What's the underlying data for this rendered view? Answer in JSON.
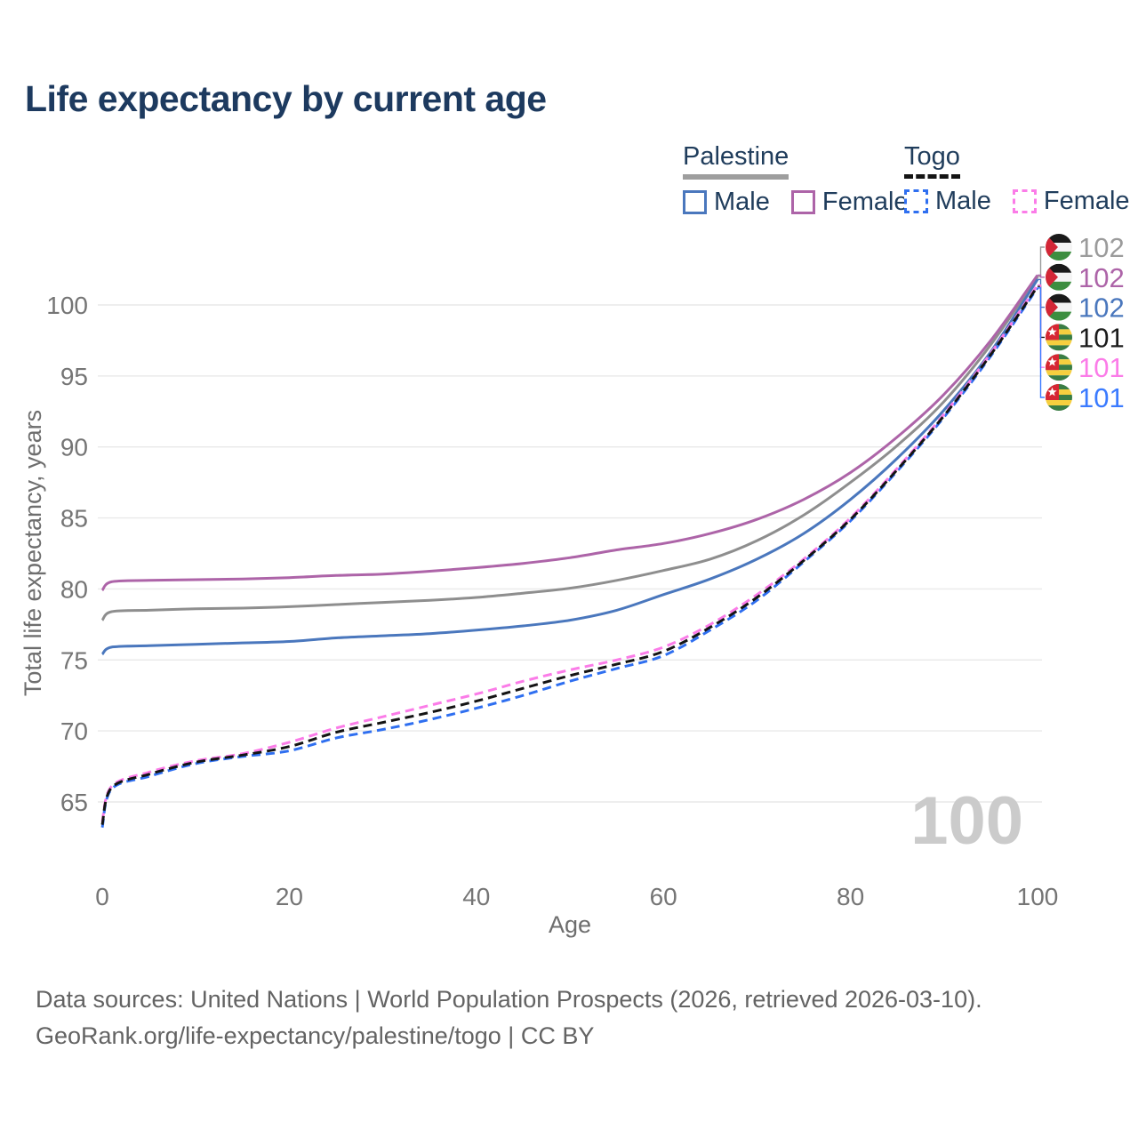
{
  "title": "Life expectancy by current age",
  "watermark": "100",
  "legend": {
    "groups": [
      {
        "label": "Palestine",
        "line_style": "solid",
        "underline_color": "#9e9e9e",
        "items": [
          {
            "label": "Male",
            "color": "#4a77bd"
          },
          {
            "label": "Female",
            "color": "#ad64a8"
          }
        ]
      },
      {
        "label": "Togo",
        "line_style": "dashed",
        "underline_color": "#141414",
        "items": [
          {
            "label": "Male",
            "color": "#2f6ff0"
          },
          {
            "label": "Female",
            "color": "#fb7ce8"
          }
        ]
      }
    ]
  },
  "axes": {
    "x_label": "Age",
    "y_label": "Total life expectancy, years",
    "x_ticks": [
      0,
      20,
      40,
      60,
      80,
      100
    ],
    "y_ticks": [
      65,
      70,
      75,
      80,
      85,
      90,
      95,
      100
    ]
  },
  "end_labels": [
    {
      "flag": "palestine",
      "series": "palestine-overall",
      "value": "102",
      "end_value": 102.0,
      "color": "#9b9b9b"
    },
    {
      "flag": "palestine",
      "series": "palestine-female",
      "value": "102",
      "end_value": 102.1,
      "color": "#ad64a8"
    },
    {
      "flag": "palestine",
      "series": "palestine-male",
      "value": "102",
      "end_value": 101.8,
      "color": "#4a77bd"
    },
    {
      "flag": "togo",
      "series": "togo-overall",
      "value": "101",
      "end_value": 101.3,
      "color": "#1b1b1b"
    },
    {
      "flag": "togo",
      "series": "togo-female",
      "value": "101",
      "end_value": 101.4,
      "color": "#fb7ce8"
    },
    {
      "flag": "togo",
      "series": "togo-male",
      "value": "101",
      "end_value": 101.2,
      "color": "#3b7bff"
    }
  ],
  "source_line1": "Data sources: United Nations | World Population Prospects (2026, retrieved 2026-03-10).",
  "source_line2": "GeoRank.org/life-expectancy/palestine/togo | CC BY",
  "chart_data": {
    "type": "line",
    "title": "Life expectancy by current age",
    "xlabel": "Age",
    "ylabel": "Total life expectancy, years",
    "xlim": [
      0,
      100
    ],
    "ylim": [
      63,
      104
    ],
    "x_ticks": [
      0,
      20,
      40,
      60,
      80,
      100
    ],
    "y_ticks": [
      65,
      70,
      75,
      80,
      85,
      90,
      95,
      100
    ],
    "grid": true,
    "legend_position": "top-right",
    "series": [
      {
        "id": "palestine-overall",
        "name": "Palestine (both sexes)",
        "country": "Palestine",
        "sex": "both",
        "style": "solid",
        "color": "#8e8e8e",
        "points": [
          [
            0,
            77.8
          ],
          [
            1,
            78.4
          ],
          [
            5,
            78.5
          ],
          [
            10,
            78.6
          ],
          [
            15,
            78.65
          ],
          [
            20,
            78.75
          ],
          [
            25,
            78.9
          ],
          [
            30,
            79.05
          ],
          [
            35,
            79.2
          ],
          [
            40,
            79.4
          ],
          [
            45,
            79.7
          ],
          [
            50,
            80.05
          ],
          [
            55,
            80.6
          ],
          [
            60,
            81.3
          ],
          [
            65,
            82.1
          ],
          [
            70,
            83.4
          ],
          [
            75,
            85.2
          ],
          [
            80,
            87.5
          ],
          [
            85,
            90.1
          ],
          [
            90,
            93.2
          ],
          [
            95,
            97.2
          ],
          [
            100,
            102.0
          ]
        ]
      },
      {
        "id": "palestine-female",
        "name": "Palestine Female",
        "country": "Palestine",
        "sex": "female",
        "style": "solid",
        "color": "#ad64a8",
        "points": [
          [
            0,
            79.9
          ],
          [
            1,
            80.5
          ],
          [
            5,
            80.6
          ],
          [
            10,
            80.65
          ],
          [
            15,
            80.7
          ],
          [
            20,
            80.8
          ],
          [
            25,
            80.95
          ],
          [
            30,
            81.05
          ],
          [
            35,
            81.25
          ],
          [
            40,
            81.5
          ],
          [
            45,
            81.8
          ],
          [
            50,
            82.2
          ],
          [
            55,
            82.75
          ],
          [
            60,
            83.2
          ],
          [
            65,
            83.9
          ],
          [
            70,
            84.9
          ],
          [
            75,
            86.3
          ],
          [
            80,
            88.2
          ],
          [
            85,
            90.7
          ],
          [
            90,
            93.7
          ],
          [
            95,
            97.5
          ],
          [
            100,
            102.1
          ]
        ]
      },
      {
        "id": "palestine-male",
        "name": "Palestine Male",
        "country": "Palestine",
        "sex": "male",
        "style": "solid",
        "color": "#4a77bd",
        "points": [
          [
            0,
            75.4
          ],
          [
            1,
            75.9
          ],
          [
            5,
            76.0
          ],
          [
            10,
            76.1
          ],
          [
            15,
            76.2
          ],
          [
            20,
            76.3
          ],
          [
            25,
            76.55
          ],
          [
            30,
            76.7
          ],
          [
            35,
            76.85
          ],
          [
            40,
            77.1
          ],
          [
            45,
            77.4
          ],
          [
            50,
            77.8
          ],
          [
            55,
            78.5
          ],
          [
            60,
            79.6
          ],
          [
            65,
            80.7
          ],
          [
            70,
            82.1
          ],
          [
            75,
            83.9
          ],
          [
            80,
            86.3
          ],
          [
            85,
            89.2
          ],
          [
            90,
            92.6
          ],
          [
            95,
            96.7
          ],
          [
            100,
            101.8
          ]
        ]
      },
      {
        "id": "togo-male",
        "name": "Togo Male",
        "country": "Togo",
        "sex": "male",
        "style": "dashed",
        "color": "#2f6ff0",
        "points": [
          [
            0,
            63.2
          ],
          [
            1,
            65.9
          ],
          [
            5,
            66.8
          ],
          [
            10,
            67.7
          ],
          [
            15,
            68.2
          ],
          [
            20,
            68.6
          ],
          [
            25,
            69.5
          ],
          [
            30,
            70.1
          ],
          [
            35,
            70.8
          ],
          [
            40,
            71.6
          ],
          [
            45,
            72.5
          ],
          [
            50,
            73.5
          ],
          [
            55,
            74.4
          ],
          [
            60,
            75.3
          ],
          [
            65,
            77.1
          ],
          [
            70,
            79.2
          ],
          [
            75,
            81.9
          ],
          [
            80,
            84.8
          ],
          [
            85,
            88.3
          ],
          [
            90,
            92.1
          ],
          [
            95,
            96.4
          ],
          [
            100,
            101.2
          ]
        ]
      },
      {
        "id": "togo-female",
        "name": "Togo Female",
        "country": "Togo",
        "sex": "female",
        "style": "dashed",
        "color": "#fb7ce8",
        "points": [
          [
            0,
            63.6
          ],
          [
            1,
            66.1
          ],
          [
            5,
            67.1
          ],
          [
            10,
            67.9
          ],
          [
            15,
            68.4
          ],
          [
            20,
            69.2
          ],
          [
            25,
            70.2
          ],
          [
            30,
            71.0
          ],
          [
            35,
            71.8
          ],
          [
            40,
            72.6
          ],
          [
            45,
            73.5
          ],
          [
            50,
            74.3
          ],
          [
            55,
            75.0
          ],
          [
            60,
            75.9
          ],
          [
            65,
            77.5
          ],
          [
            70,
            79.6
          ],
          [
            75,
            82.1
          ],
          [
            80,
            85.0
          ],
          [
            85,
            88.5
          ],
          [
            90,
            92.3
          ],
          [
            95,
            96.6
          ],
          [
            100,
            101.4
          ]
        ]
      },
      {
        "id": "togo-overall",
        "name": "Togo (both sexes)",
        "country": "Togo",
        "sex": "both",
        "style": "dashed",
        "color": "#141414",
        "points": [
          [
            0,
            63.4
          ],
          [
            1,
            66.0
          ],
          [
            5,
            66.95
          ],
          [
            10,
            67.8
          ],
          [
            15,
            68.3
          ],
          [
            20,
            68.9
          ],
          [
            25,
            69.9
          ],
          [
            30,
            70.6
          ],
          [
            35,
            71.3
          ],
          [
            40,
            72.1
          ],
          [
            45,
            73.0
          ],
          [
            50,
            73.9
          ],
          [
            55,
            74.7
          ],
          [
            60,
            75.6
          ],
          [
            65,
            77.3
          ],
          [
            70,
            79.4
          ],
          [
            75,
            82.0
          ],
          [
            80,
            84.9
          ],
          [
            85,
            88.4
          ],
          [
            90,
            92.2
          ],
          [
            95,
            96.5
          ],
          [
            100,
            101.3
          ]
        ]
      }
    ]
  }
}
